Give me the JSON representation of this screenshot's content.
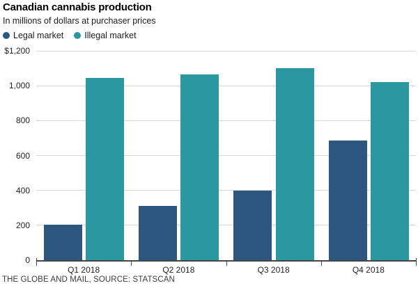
{
  "header": {
    "title": "Canadian cannabis production",
    "subtitle": "In millions of dollars at purchaser prices"
  },
  "chart_data": {
    "type": "bar",
    "title": "Canadian cannabis production",
    "subtitle": "In millions of dollars at purchaser prices",
    "unit": "millions of dollars at purchaser prices",
    "categories": [
      "Q1 2018",
      "Q2 2018",
      "Q3 2018",
      "Q4 2018"
    ],
    "series": [
      {
        "name": "Legal market",
        "color": "#2e577f",
        "values": [
          205,
          310,
          400,
          685
        ]
      },
      {
        "name": "Illegal market",
        "color": "#2b97a1",
        "values": [
          1045,
          1065,
          1100,
          1020
        ]
      }
    ],
    "ylim": [
      0,
      1200
    ],
    "y_ticks": [
      {
        "value": 0,
        "label": "0"
      },
      {
        "value": 200,
        "label": "200"
      },
      {
        "value": 400,
        "label": "400"
      },
      {
        "value": 600,
        "label": "600"
      },
      {
        "value": 800,
        "label": "800"
      },
      {
        "value": 1000,
        "label": "1,000"
      },
      {
        "value": 1200,
        "label": "$1,200"
      }
    ],
    "grid": true,
    "legend_position": "top-left"
  },
  "footer": {
    "source": "THE GLOBE AND MAIL, SOURCE: STATSCAN"
  },
  "colors": {
    "legal": "#2e577f",
    "illegal": "#2b97a1",
    "grid": "#d8d8d8",
    "axis": "#454545",
    "text": "#222222"
  }
}
